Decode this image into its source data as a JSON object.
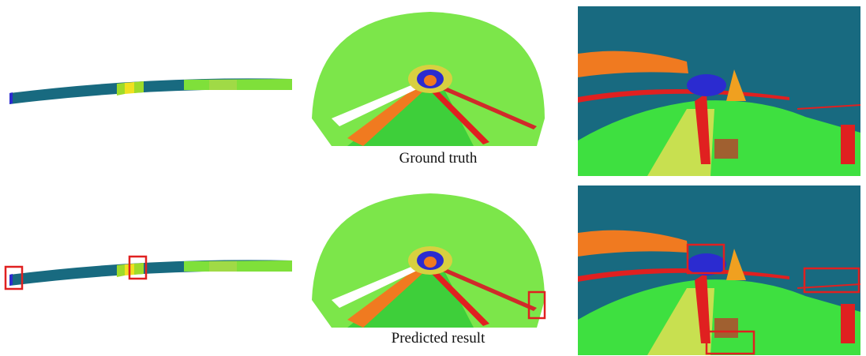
{
  "captions": [
    "Ground truth",
    "Predicted result"
  ]
}
